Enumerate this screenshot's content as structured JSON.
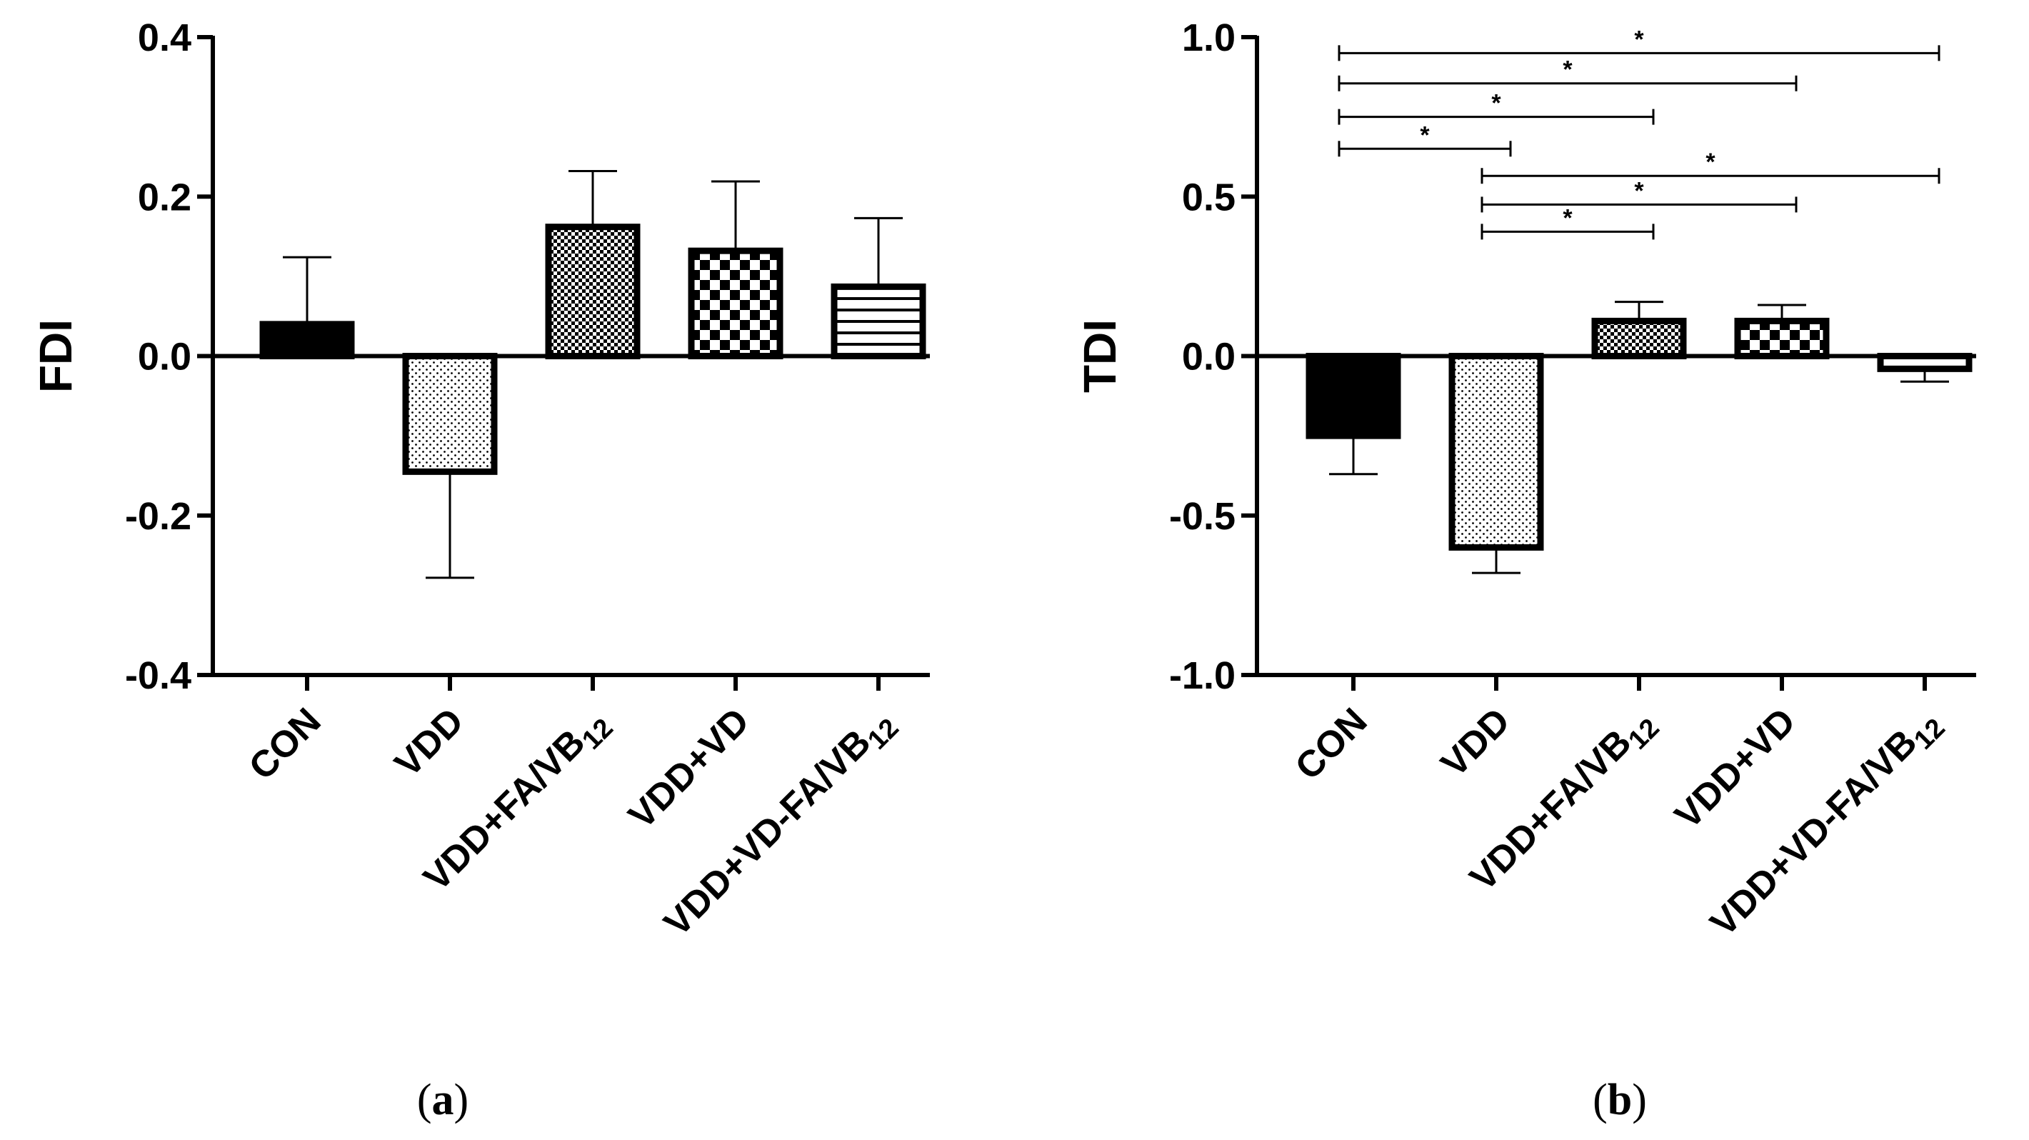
{
  "chart_data": [
    {
      "type": "bar",
      "panel": "a",
      "categories": [
        "CON",
        "VDD",
        "VDD+FA/VB12",
        "VDD+VD",
        "VDD+VD-FA/VB12"
      ],
      "category_labels": [
        {
          "main": "CON",
          "sub": ""
        },
        {
          "main": "VDD",
          "sub": ""
        },
        {
          "main": "VDD+FA/VB",
          "sub": "12"
        },
        {
          "main": "VDD+VD",
          "sub": ""
        },
        {
          "main": "VDD+VD-FA/VB",
          "sub": "12"
        }
      ],
      "values": [
        0.04,
        -0.145,
        0.162,
        0.132,
        0.087
      ],
      "error_upper": [
        0.084,
        0.133,
        0.07,
        0.087,
        0.086
      ],
      "patterns": [
        "solid",
        "dots",
        "fine-check",
        "check",
        "hlines"
      ],
      "ylabel": "FDI",
      "xlabel": "",
      "ylim": [
        -0.4,
        0.4
      ],
      "yticks": [
        0.4,
        0.2,
        0.0,
        -0.2,
        -0.4
      ],
      "ytick_labels": [
        "0.4",
        "0.2",
        "0.0",
        "-0.2",
        "-0.4"
      ],
      "significance": []
    },
    {
      "type": "bar",
      "panel": "b",
      "categories": [
        "CON",
        "VDD",
        "VDD+FA/VB12",
        "VDD+VD",
        "VDD+VD-FA/VB12"
      ],
      "category_labels": [
        {
          "main": "CON",
          "sub": ""
        },
        {
          "main": "VDD",
          "sub": ""
        },
        {
          "main": "VDD+FA/VB",
          "sub": "12"
        },
        {
          "main": "VDD+VD",
          "sub": ""
        },
        {
          "main": "VDD+VD-FA/VB",
          "sub": "12"
        }
      ],
      "values": [
        -0.25,
        -0.6,
        0.11,
        0.11,
        -0.04
      ],
      "error_upper": [
        0.12,
        0.08,
        0.06,
        0.05,
        0.04
      ],
      "patterns": [
        "solid",
        "dots",
        "fine-check",
        "check",
        "hlines"
      ],
      "ylabel": "TDI",
      "xlabel": "",
      "ylim": [
        -1.0,
        1.0
      ],
      "yticks": [
        1.0,
        0.5,
        0.0,
        -0.5,
        -1.0
      ],
      "ytick_labels": [
        "1.0",
        "0.5",
        "0.0",
        "-0.5",
        "-1.0"
      ],
      "significance": [
        {
          "from": 0,
          "to": 4,
          "y": 0.95,
          "label": "*"
        },
        {
          "from": 0,
          "to": 3,
          "y": 0.855,
          "label": "*"
        },
        {
          "from": 0,
          "to": 2,
          "y": 0.75,
          "label": "*"
        },
        {
          "from": 0,
          "to": 1,
          "y": 0.65,
          "label": "*"
        },
        {
          "from": 1,
          "to": 4,
          "y": 0.565,
          "label": "*"
        },
        {
          "from": 1,
          "to": 3,
          "y": 0.475,
          "label": "*"
        },
        {
          "from": 1,
          "to": 2,
          "y": 0.39,
          "label": "*"
        }
      ]
    }
  ],
  "panel_labels": {
    "a": "a",
    "b": "b"
  },
  "colors": {
    "ink": "#000000",
    "paper": "#ffffff"
  }
}
